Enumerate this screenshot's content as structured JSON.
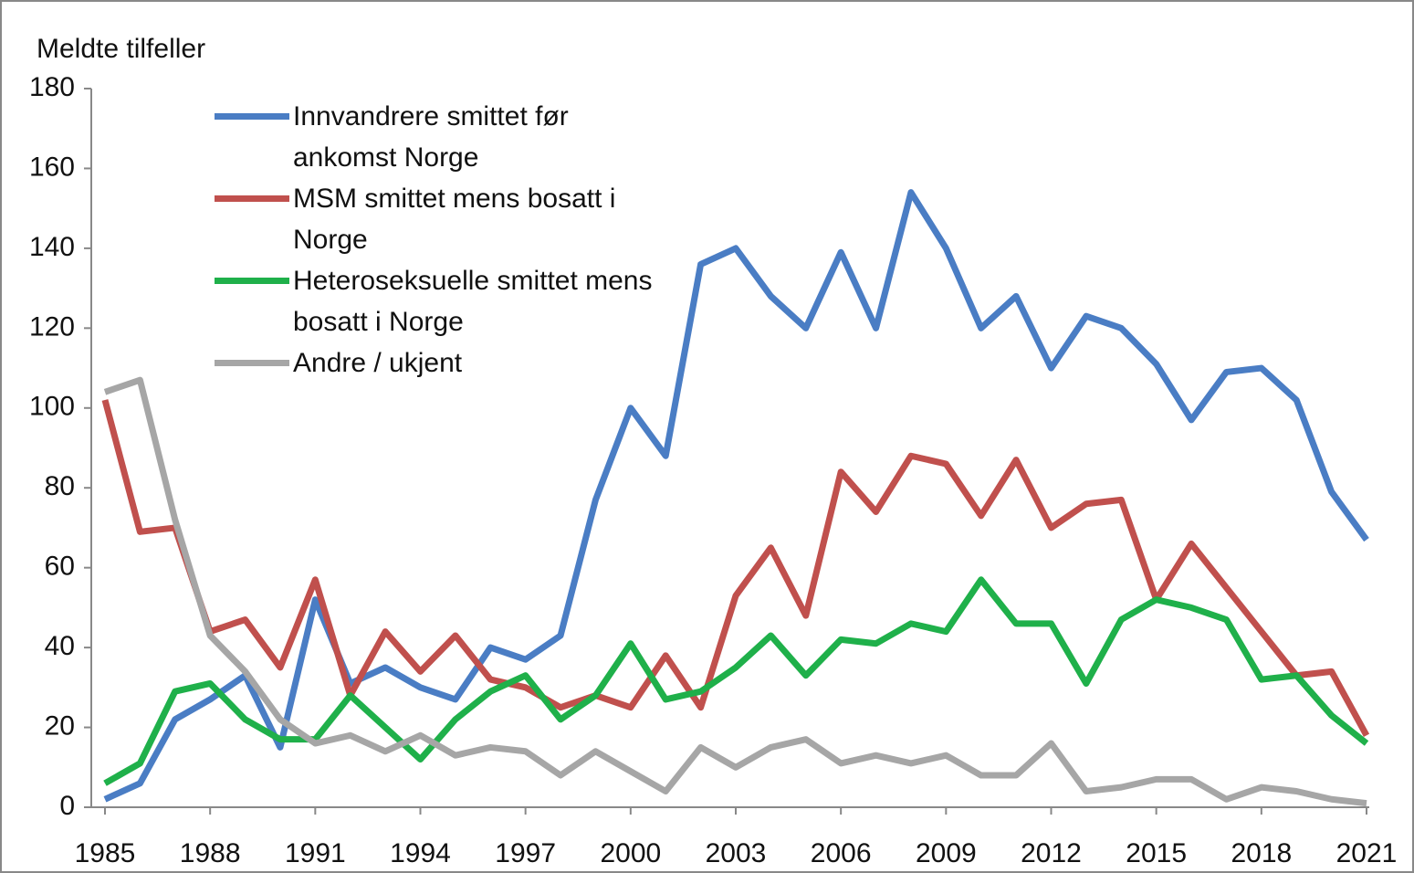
{
  "chart_data": {
    "type": "line",
    "y_label": "Meldte tilfeller",
    "x": [
      1985,
      1986,
      1987,
      1988,
      1989,
      1990,
      1991,
      1992,
      1993,
      1994,
      1995,
      1996,
      1997,
      1998,
      1999,
      2000,
      2001,
      2002,
      2003,
      2004,
      2005,
      2006,
      2007,
      2008,
      2009,
      2010,
      2011,
      2012,
      2013,
      2014,
      2015,
      2016,
      2017,
      2018,
      2019,
      2020,
      2021
    ],
    "series": [
      {
        "name": "Innvandrere smittet før ankomst Norge",
        "color": "#4a7dc4",
        "values": [
          2,
          6,
          22,
          27,
          33,
          15,
          52,
          31,
          35,
          30,
          27,
          40,
          37,
          43,
          77,
          100,
          88,
          136,
          140,
          128,
          120,
          139,
          120,
          154,
          140,
          120,
          128,
          110,
          123,
          120,
          111,
          97,
          109,
          110,
          102,
          79,
          67
        ]
      },
      {
        "name": "MSM smittet mens bosatt i Norge",
        "color": "#c0504d",
        "values": [
          102,
          69,
          70,
          44,
          47,
          35,
          57,
          28,
          44,
          34,
          43,
          32,
          30,
          25,
          28,
          25,
          38,
          25,
          53,
          65,
          48,
          84,
          74,
          88,
          86,
          73,
          87,
          70,
          76,
          77,
          52,
          66,
          55,
          44,
          33,
          34,
          18
        ]
      },
      {
        "name": "Heteroseksuelle smittet mens bosatt i Norge",
        "color": "#1fb04a",
        "values": [
          6,
          11,
          29,
          31,
          22,
          17,
          17,
          28,
          20,
          12,
          22,
          29,
          33,
          22,
          28,
          41,
          27,
          29,
          35,
          43,
          33,
          42,
          41,
          46,
          44,
          57,
          46,
          46,
          31,
          47,
          52,
          50,
          47,
          32,
          33,
          23,
          16
        ]
      },
      {
        "name": "Andre / ukjent",
        "color": "#a6a6a6",
        "values": [
          104,
          107,
          72,
          43,
          34,
          22,
          16,
          18,
          14,
          18,
          13,
          15,
          14,
          8,
          14,
          9,
          4,
          15,
          10,
          15,
          17,
          11,
          13,
          11,
          13,
          8,
          8,
          16,
          4,
          5,
          7,
          7,
          2,
          5,
          4,
          2,
          1
        ]
      }
    ],
    "xlim": [
      1985,
      2021
    ],
    "xticks": [
      1985,
      1988,
      1991,
      1994,
      1997,
      2000,
      2003,
      2006,
      2009,
      2012,
      2015,
      2018,
      2021
    ],
    "ylim": [
      0,
      180
    ],
    "yticks": [
      0,
      20,
      40,
      60,
      80,
      100,
      120,
      140,
      160,
      180
    ]
  }
}
